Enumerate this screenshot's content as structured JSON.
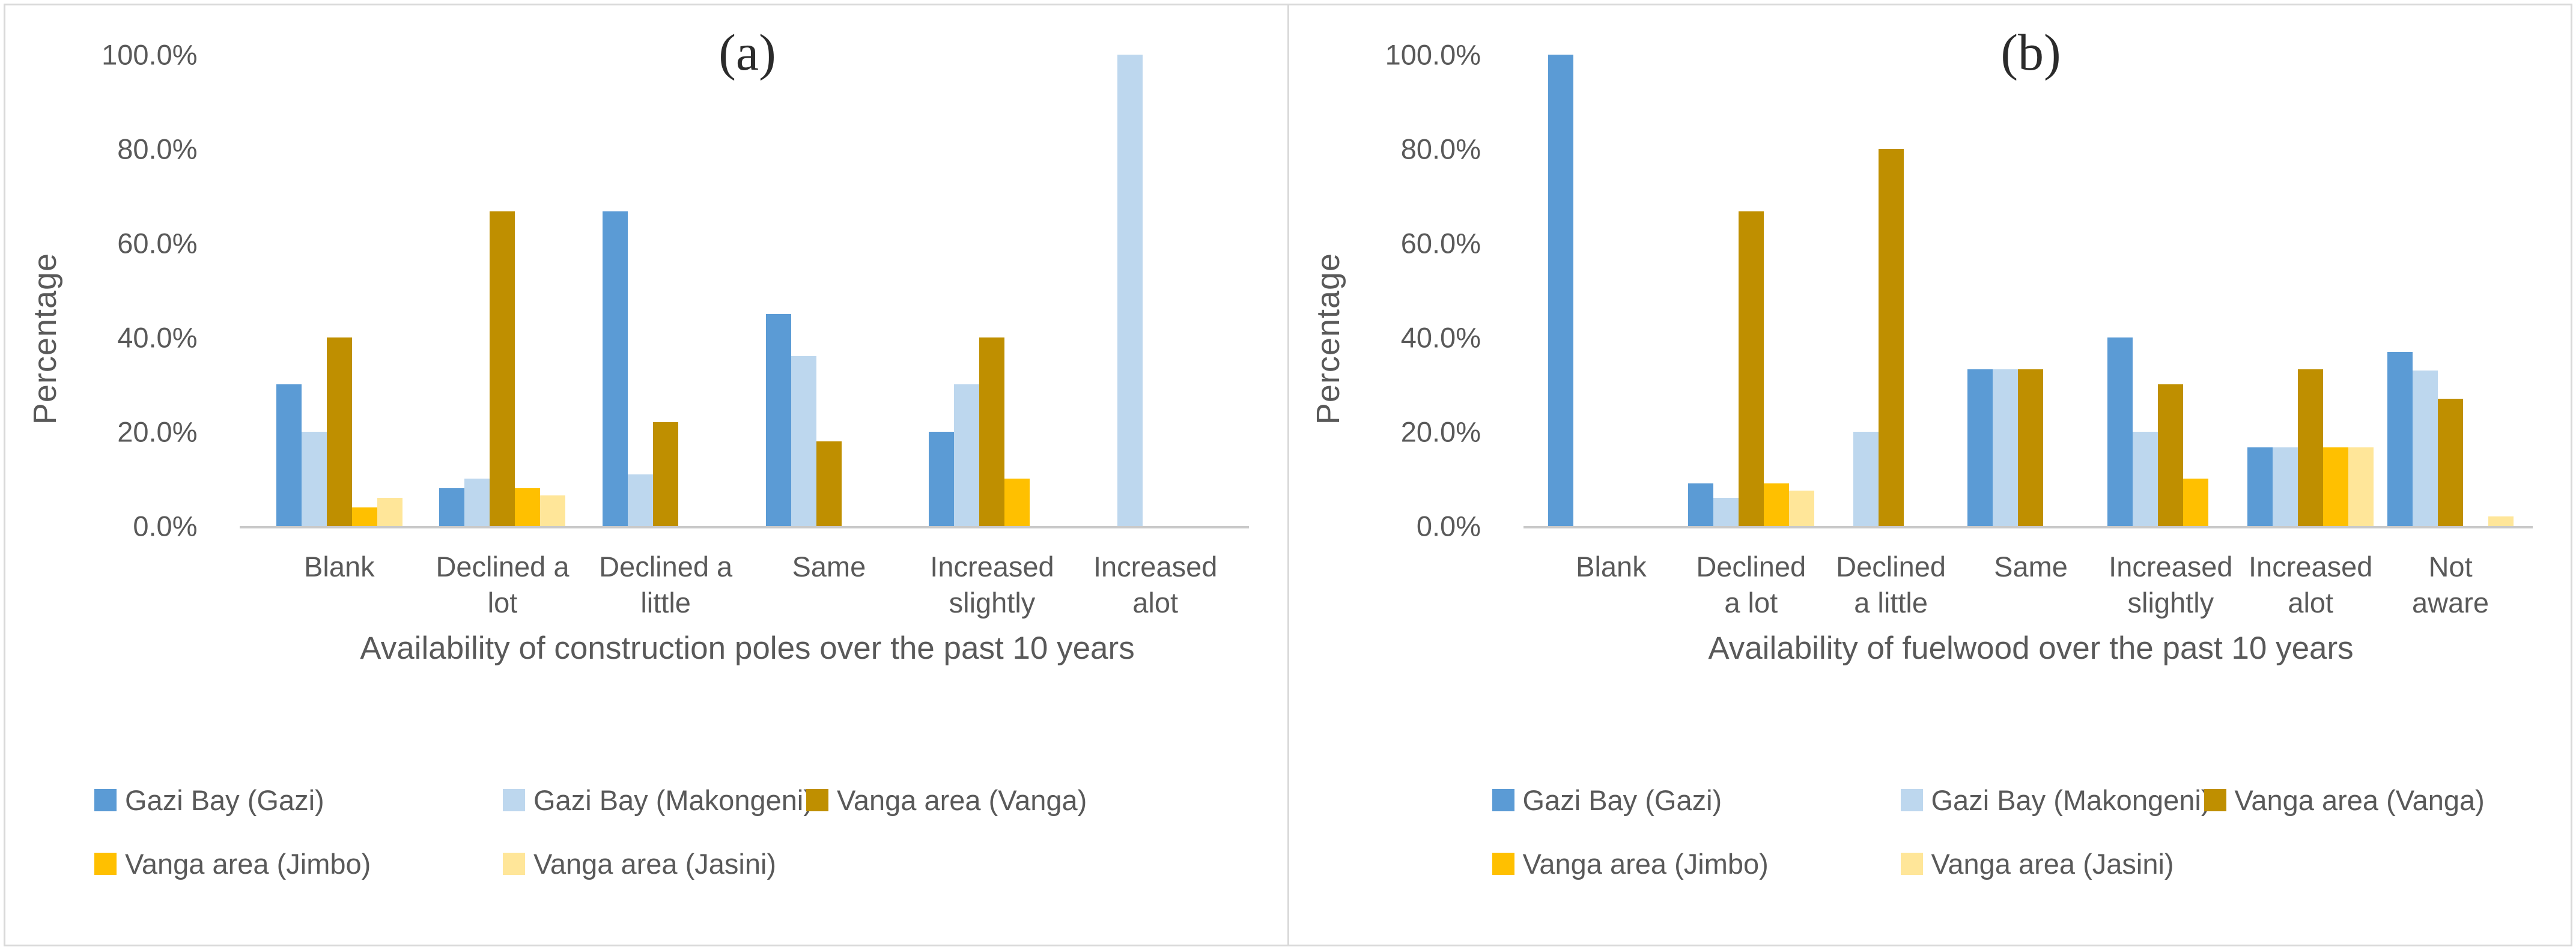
{
  "figure": {
    "description": "Two grouped bar charts comparing responses across five village sites",
    "accent_colors": {
      "gazi_blue": "#5B9BD5",
      "makongeni_light_blue": "#BDD7EE",
      "vanga_gold": "#BF8F00",
      "jimbo_amber": "#FFC000",
      "jasini_pale_yellow": "#FFE699",
      "axis_gray": "#595959",
      "baseline_gray": "#C9C9C9"
    }
  },
  "chart_data": [
    {
      "type": "bar",
      "title": "(a)",
      "ylabel": "Percentage",
      "xlabel": "Availability of construction poles over the past 10 years",
      "ylim": [
        0,
        100
      ],
      "grid": false,
      "legend_position": "bottom",
      "yticks": [
        {
          "value": 0,
          "label": "0.0%"
        },
        {
          "value": 20,
          "label": "20.0%"
        },
        {
          "value": 40,
          "label": "40.0%"
        },
        {
          "value": 60,
          "label": "60.0%"
        },
        {
          "value": 80,
          "label": "80.0%"
        },
        {
          "value": 100,
          "label": "100.0%"
        }
      ],
      "categories": [
        [
          "Blank"
        ],
        [
          "Declined a",
          "lot"
        ],
        [
          "Declined a",
          "little"
        ],
        [
          "Same"
        ],
        [
          "Increased",
          "slightly"
        ],
        [
          "Increased",
          "alot"
        ]
      ],
      "series": [
        {
          "name": "Gazi Bay (Gazi)",
          "color": "#5B9BD5",
          "values": [
            30,
            8,
            66.7,
            45,
            20,
            0
          ]
        },
        {
          "name": "Gazi Bay (Makongeni)",
          "color": "#BDD7EE",
          "values": [
            20,
            10,
            11,
            36,
            30,
            100
          ]
        },
        {
          "name": "Vanga area (Vanga)",
          "color": "#BF8F00",
          "values": [
            40,
            66.7,
            22,
            18,
            40,
            0
          ]
        },
        {
          "name": "Vanga area (Jimbo)",
          "color": "#FFC000",
          "values": [
            4,
            8,
            0,
            0,
            10,
            0
          ]
        },
        {
          "name": "Vanga area (Jasini)",
          "color": "#FFE699",
          "values": [
            6,
            6.5,
            0,
            0,
            0,
            0
          ]
        }
      ]
    },
    {
      "type": "bar",
      "title": "(b)",
      "ylabel": "Percentage",
      "xlabel": "Availability of fuelwood over the past 10 years",
      "ylim": [
        0,
        100
      ],
      "grid": false,
      "legend_position": "bottom",
      "yticks": [
        {
          "value": 0,
          "label": "0.0%"
        },
        {
          "value": 20,
          "label": "20.0%"
        },
        {
          "value": 40,
          "label": "40.0%"
        },
        {
          "value": 60,
          "label": "60.0%"
        },
        {
          "value": 80,
          "label": "80.0%"
        },
        {
          "value": 100,
          "label": "100.0%"
        }
      ],
      "categories": [
        [
          "Blank"
        ],
        [
          "Declined",
          "a lot"
        ],
        [
          "Declined",
          "a little"
        ],
        [
          "Same"
        ],
        [
          "Increased",
          "slightly"
        ],
        [
          "Increased",
          "alot"
        ],
        [
          "Not",
          "aware"
        ]
      ],
      "series": [
        {
          "name": "Gazi Bay (Gazi)",
          "color": "#5B9BD5",
          "values": [
            100,
            9,
            0,
            33.3,
            40,
            16.7,
            37
          ]
        },
        {
          "name": "Gazi Bay (Makongeni)",
          "color": "#BDD7EE",
          "values": [
            0,
            6,
            20,
            33.3,
            20,
            16.7,
            33
          ]
        },
        {
          "name": "Vanga area (Vanga)",
          "color": "#BF8F00",
          "values": [
            0,
            66.7,
            80,
            33.3,
            30,
            33.3,
            27
          ]
        },
        {
          "name": "Vanga area (Jimbo)",
          "color": "#FFC000",
          "values": [
            0,
            9,
            0,
            0,
            10,
            16.7,
            0
          ]
        },
        {
          "name": "Vanga area (Jasini)",
          "color": "#FFE699",
          "values": [
            0,
            7.5,
            0,
            0,
            0,
            16.7,
            2
          ]
        }
      ]
    }
  ]
}
